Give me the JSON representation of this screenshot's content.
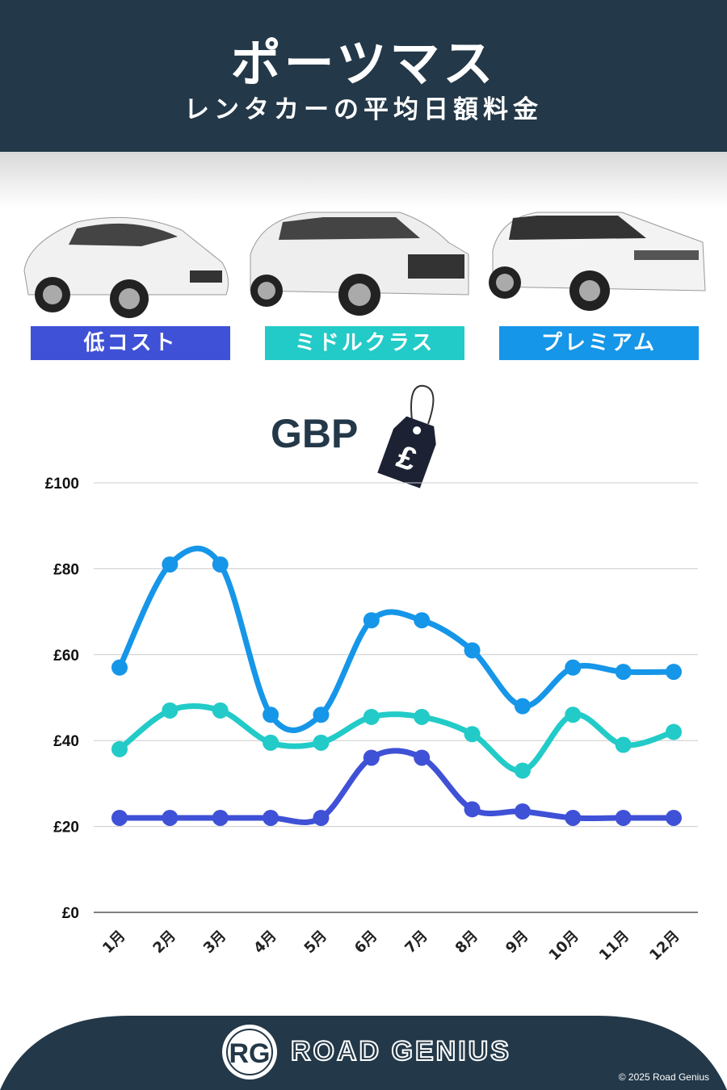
{
  "header": {
    "title": "ポーツマス",
    "subtitle": "レンタカーの平均日額料金"
  },
  "categories_labels": [
    {
      "label": "低コスト",
      "color": "#3f51d6"
    },
    {
      "label": "ミドルクラス",
      "color": "#22cbc7"
    },
    {
      "label": "プレミアム",
      "color": "#1696e8"
    }
  ],
  "currency": {
    "label": "GBP",
    "tag_symbol": "£"
  },
  "chart_data": {
    "type": "line",
    "categories": [
      "1月",
      "2月",
      "3月",
      "4月",
      "5月",
      "6月",
      "7月",
      "8月",
      "9月",
      "10月",
      "11月",
      "12月"
    ],
    "yticks": [
      "£0",
      "£20",
      "£40",
      "£60",
      "£80",
      "£100"
    ],
    "ylim": [
      0,
      100
    ],
    "grid": true,
    "series": [
      {
        "name": "プレミアム",
        "color": "#1696e8",
        "values": [
          57,
          81,
          81,
          46,
          46,
          68,
          68,
          61,
          48,
          57,
          56,
          56
        ]
      },
      {
        "name": "ミドルクラス",
        "color": "#22cbc7",
        "values": [
          38,
          47,
          47,
          39.5,
          39.5,
          45.5,
          45.5,
          41.5,
          33,
          46,
          39,
          42
        ]
      },
      {
        "name": "低コスト",
        "color": "#3f51d6",
        "values": [
          22,
          22,
          22,
          22,
          22,
          36,
          36,
          24,
          23.5,
          22,
          22,
          22
        ]
      }
    ]
  },
  "footer": {
    "brand": "ROAD GENIUS",
    "logo": "RG",
    "copyright": "© 2025 Road Genius",
    "bg": "#233848"
  }
}
